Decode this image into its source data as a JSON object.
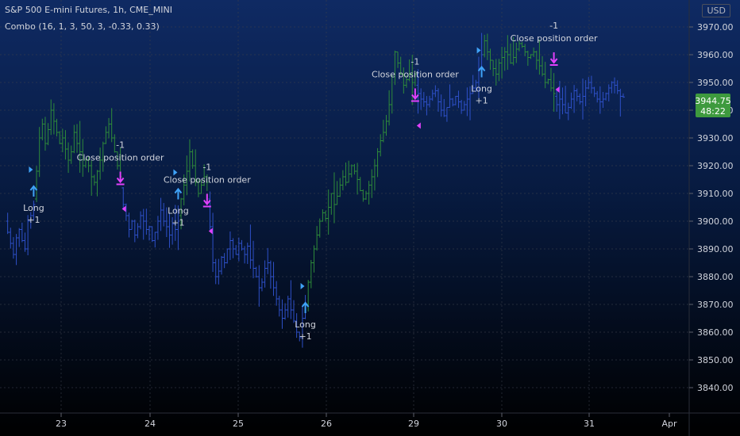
{
  "header": {
    "symbol_line": "S&P 500 E-mini Futures, 1h, CME_MINI",
    "study_line": "Combo (16, 1, 3, 50, 3, -0.33, 0.33)",
    "currency": "USD"
  },
  "price_label": {
    "price": "3944.75",
    "countdown": "48:22"
  },
  "colors": {
    "up": "#2e8b3a",
    "down": "#2e50c8",
    "buy_arrow": "#3fa2f7",
    "sell_arrow": "#e040fb",
    "price_label_bg": "#3e9a3e",
    "text": "#d1d4dc"
  },
  "chart_data": {
    "type": "ohlc",
    "y_ticks": [
      3840,
      3850,
      3860,
      3870,
      3880,
      3890,
      3900,
      3910,
      3920,
      3930,
      3940,
      3950,
      3960,
      3970
    ],
    "ylim": [
      3837,
      3974
    ],
    "x_ticks": [
      "23",
      "24",
      "25",
      "26",
      "29",
      "30",
      "31",
      "Apr"
    ],
    "grid": true,
    "series": [
      {
        "name": "down",
        "segment": [
          0,
          10
        ],
        "values": [
          3900,
          3896,
          3892,
          3888,
          3894,
          3897,
          3893,
          3890,
          3900,
          3902,
          3906
        ]
      },
      {
        "name": "up",
        "segment": [
          10,
          40
        ],
        "values": [
          3908,
          3918,
          3930,
          3935,
          3928,
          3933,
          3940,
          3936,
          3932,
          3928,
          3930,
          3926,
          3922,
          3925,
          3932,
          3928,
          3925,
          3920,
          3922,
          3920,
          3916,
          3914,
          3918,
          3922,
          3928,
          3932,
          3935,
          3930,
          3925,
          3920,
          3916
        ]
      },
      {
        "name": "down",
        "segment": [
          40,
          60
        ],
        "values": [
          3912,
          3906,
          3902,
          3897,
          3900,
          3895,
          3898,
          3902,
          3900,
          3897,
          3898,
          3893,
          3896,
          3900,
          3904,
          3900,
          3898,
          3895,
          3899,
          3897,
          3900
        ]
      },
      {
        "name": "up",
        "segment": [
          60,
          70
        ],
        "values": [
          3902,
          3908,
          3913,
          3918,
          3925,
          3920,
          3914,
          3910,
          3913,
          3916,
          3914
        ]
      },
      {
        "name": "down",
        "segment": [
          70,
          104
        ],
        "values": [
          3908,
          3898,
          3885,
          3880,
          3882,
          3887,
          3885,
          3890,
          3893,
          3890,
          3888,
          3892,
          3890,
          3888,
          3891,
          3886,
          3883,
          3880,
          3876,
          3878,
          3883,
          3885,
          3880,
          3876,
          3872,
          3868,
          3865,
          3868,
          3872,
          3868,
          3864,
          3860,
          3858,
          3865,
          3870
        ]
      },
      {
        "name": "up",
        "segment": [
          104,
          142
        ],
        "values": [
          3870,
          3878,
          3885,
          3890,
          3895,
          3900,
          3903,
          3901,
          3905,
          3910,
          3906,
          3909,
          3913,
          3916,
          3914,
          3917,
          3920,
          3918,
          3915,
          3911,
          3908,
          3910,
          3913,
          3916,
          3920,
          3925,
          3929,
          3932,
          3936,
          3942,
          3952,
          3961,
          3957,
          3953,
          3949,
          3951,
          3953,
          3950,
          3953
        ]
      },
      {
        "name": "down",
        "segment": [
          142,
          165
        ],
        "values": [
          3949,
          3946,
          3944,
          3943,
          3942,
          3944,
          3946,
          3947,
          3943,
          3940,
          3938,
          3941,
          3944,
          3942,
          3945,
          3943,
          3940,
          3942,
          3944,
          3946,
          3948,
          3950,
          3955,
          3960
        ]
      },
      {
        "name": "up",
        "segment": [
          165,
          190
        ],
        "values": [
          3960,
          3965,
          3961,
          3958,
          3955,
          3953,
          3957,
          3959,
          3961,
          3960,
          3957,
          3959,
          3962,
          3964,
          3963,
          3961,
          3959,
          3960,
          3961,
          3958,
          3956,
          3953,
          3950,
          3951,
          3948,
          3946
        ]
      },
      {
        "name": "down",
        "segment": [
          190,
          214
        ],
        "values": [
          3945,
          3942,
          3944,
          3942,
          3939,
          3941,
          3944,
          3947,
          3945,
          3943,
          3945,
          3948,
          3950,
          3948,
          3946,
          3944,
          3943,
          3944,
          3946,
          3948,
          3950,
          3949,
          3947,
          3945,
          3944.75
        ]
      }
    ],
    "signals": [
      {
        "type": "buy",
        "bar": 10,
        "price": 3910,
        "label1": "Long",
        "label2": "+1"
      },
      {
        "type": "sell",
        "bar": 40,
        "price": 3915,
        "label1": "-1",
        "label2": "Close position order"
      },
      {
        "type": "buy",
        "bar": 60,
        "price": 3909,
        "label1": "Long",
        "label2": "+1"
      },
      {
        "type": "sell",
        "bar": 70,
        "price": 3907,
        "label1": "-1",
        "label2": "Close position order"
      },
      {
        "type": "buy",
        "bar": 104,
        "price": 3868,
        "label1": "Long",
        "label2": "+1"
      },
      {
        "type": "sell",
        "bar": 142,
        "price": 3945,
        "label1": "-1",
        "label2": "Close position order"
      },
      {
        "type": "buy",
        "bar": 165,
        "price": 3953,
        "label1": "Long",
        "label2": "+1"
      },
      {
        "type": "sell",
        "bar": 190,
        "price": 3958,
        "label1": "-1",
        "label2": "Close position order"
      }
    ]
  }
}
